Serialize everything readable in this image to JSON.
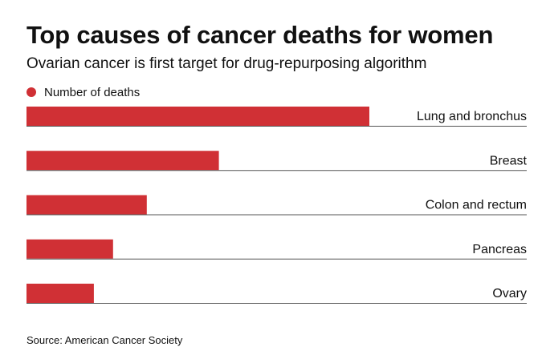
{
  "title": "Top causes of cancer deaths for women",
  "subtitle": "Ovarian cancer is first target for drug-repurposing algorithm",
  "source": "Source: American Cancer Society",
  "colors": {
    "bar": "#d03035",
    "baseline": "#555555",
    "text": "#111111"
  },
  "chart_data": {
    "type": "bar",
    "orientation": "horizontal",
    "legend": [
      "Number of deaths"
    ],
    "legend_position": "top-left",
    "grid": false,
    "categories": [
      "Lung and bronchus",
      "Breast",
      "Colon and rectum",
      "Pancreas",
      "Ovary"
    ],
    "series": [
      {
        "name": "Number of deaths",
        "values": [
          71280,
          40000,
          25000,
          18000,
          14000
        ]
      }
    ],
    "xlim": [
      0,
      104000
    ]
  }
}
